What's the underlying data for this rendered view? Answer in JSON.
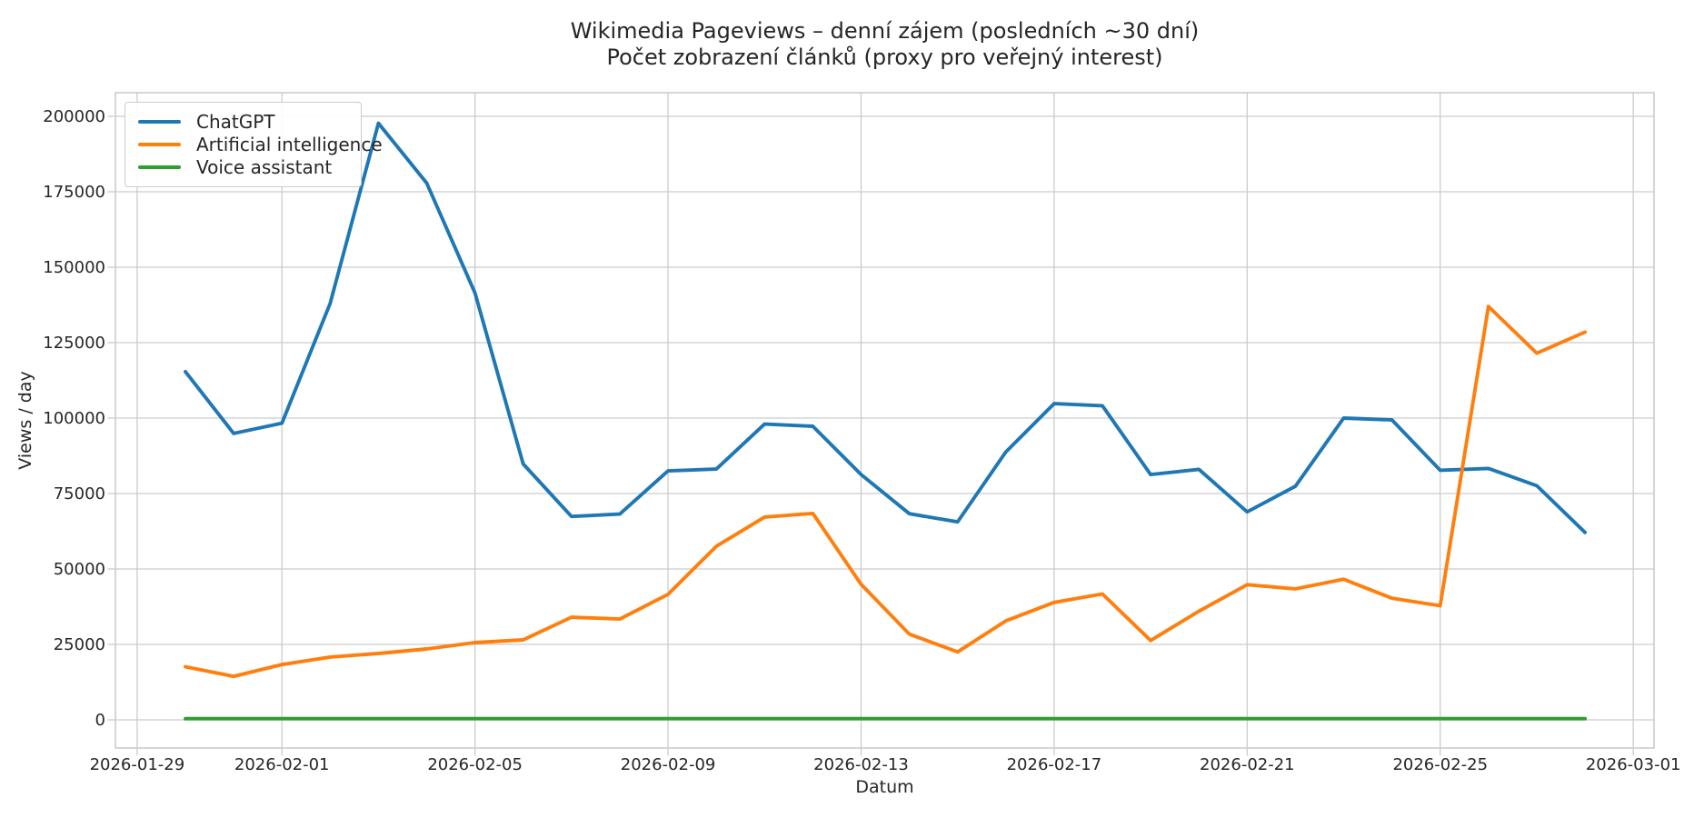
{
  "title": {
    "line1": "Wikimedia Pageviews – denní zájem (posledních ~30 dní)",
    "line2": "Počet zobrazení článků (proxy pro veřejný interest)"
  },
  "colors": {
    "grid": "#cccccc",
    "spine": "#cccccc",
    "text": "#262626",
    "background": "#ffffff"
  },
  "chart_data": {
    "type": "line",
    "title": "Wikimedia Pageviews – denní zájem (posledních ~30 dní)",
    "subtitle": "Počet zobrazení článků (proxy pro veřejný interest)",
    "xlabel": "Datum",
    "ylabel": "Views / day",
    "grid": true,
    "legend_position": "upper-left",
    "x": [
      "2026-01-30",
      "2026-01-31",
      "2026-02-01",
      "2026-02-02",
      "2026-02-03",
      "2026-02-04",
      "2026-02-05",
      "2026-02-06",
      "2026-02-07",
      "2026-02-08",
      "2026-02-09",
      "2026-02-10",
      "2026-02-11",
      "2026-02-12",
      "2026-02-13",
      "2026-02-14",
      "2026-02-15",
      "2026-02-16",
      "2026-02-17",
      "2026-02-18",
      "2026-02-19",
      "2026-02-20",
      "2026-02-21",
      "2026-02-22",
      "2026-02-23",
      "2026-02-24",
      "2026-02-25",
      "2026-02-26",
      "2026-02-27",
      "2026-02-28"
    ],
    "series": [
      {
        "name": "ChatGPT",
        "color": "#1f77b4",
        "values": [
          115400,
          94900,
          98300,
          138000,
          197700,
          177900,
          141500,
          84800,
          67400,
          68200,
          82500,
          83100,
          98000,
          97300,
          81300,
          68300,
          65600,
          88800,
          104800,
          104100,
          81300,
          83000,
          68900,
          77400,
          100000,
          99400,
          82700,
          83300,
          77600,
          62100
        ]
      },
      {
        "name": "Artificial intelligence",
        "color": "#ff7f0e",
        "values": [
          17600,
          14400,
          18300,
          20800,
          22000,
          23500,
          25600,
          26500,
          34000,
          33400,
          41600,
          57500,
          67200,
          68400,
          44900,
          28400,
          22500,
          32800,
          38900,
          41700,
          26300,
          36000,
          44800,
          43400,
          46600,
          40300,
          37800,
          137000,
          121500,
          128500
        ]
      },
      {
        "name": "Voice assistant",
        "color": "#2ca02c",
        "values": [
          400,
          400,
          400,
          400,
          400,
          400,
          400,
          400,
          400,
          400,
          400,
          400,
          400,
          400,
          400,
          400,
          400,
          400,
          400,
          400,
          400,
          400,
          400,
          400,
          400,
          400,
          400,
          400,
          400,
          400
        ]
      }
    ],
    "x_tick_labels": [
      "2026-01-29",
      "2026-02-01",
      "2026-02-05",
      "2026-02-09",
      "2026-02-13",
      "2026-02-17",
      "2026-02-21",
      "2026-02-25",
      "2026-03-01"
    ],
    "x_tick_origin": "2026-01-29",
    "y_ticks": [
      0,
      25000,
      50000,
      75000,
      100000,
      125000,
      150000,
      175000,
      200000
    ],
    "ylim": [
      -9340,
      207830
    ],
    "xlim_days": [
      -0.45,
      31.43
    ]
  }
}
